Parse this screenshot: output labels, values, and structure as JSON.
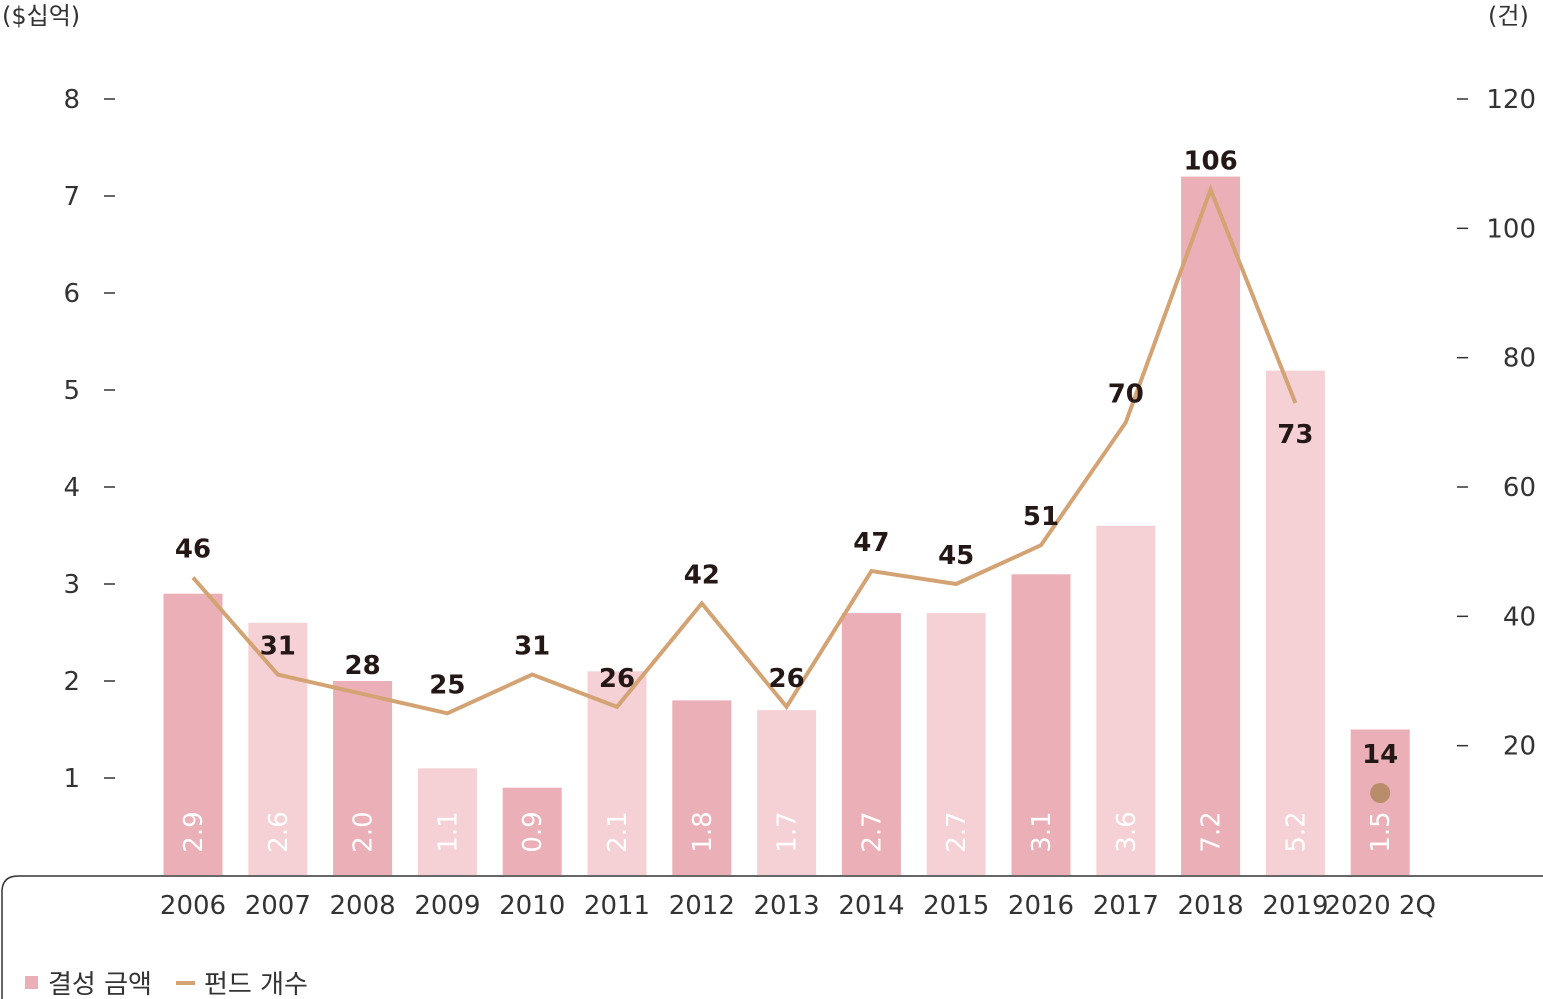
{
  "chart_data": {
    "type": "bar",
    "y_left_unit": "($십억)",
    "y_right_unit": "(건)",
    "categories": [
      "2006",
      "2007",
      "2008",
      "2009",
      "2010",
      "2011",
      "2012",
      "2013",
      "2014",
      "2015",
      "2016",
      "2017",
      "2018",
      "2019",
      "2020 2Q"
    ],
    "series": [
      {
        "name": "결성 금액",
        "type": "bar",
        "axis": "left",
        "values": [
          2.9,
          2.6,
          2.0,
          1.1,
          0.9,
          2.1,
          1.8,
          1.7,
          2.7,
          2.7,
          3.1,
          3.6,
          7.2,
          5.2,
          1.5
        ],
        "value_labels": [
          "2.9",
          "2.6",
          "2.0",
          "1.1",
          "0.9",
          "2.1",
          "1.8",
          "1.7",
          "2.7",
          "2.7",
          "3.1",
          "3.6",
          "7.2",
          "5.2",
          "1.5"
        ],
        "colors": [
          "#ebafb7",
          "#f5d1d5",
          "#ebafb7",
          "#f5d1d5",
          "#ebafb7",
          "#f5d1d5",
          "#ebafb7",
          "#f5d1d5",
          "#ebafb7",
          "#f5d1d5",
          "#ebafb7",
          "#f5d1d5",
          "#ebafb7",
          "#f5d1d5",
          "#ebafb7"
        ]
      },
      {
        "name": "펀드 개수",
        "type": "line",
        "axis": "right",
        "values": [
          46,
          31,
          28,
          25,
          31,
          26,
          42,
          26,
          47,
          45,
          51,
          70,
          106,
          73,
          14
        ],
        "line_points": 14,
        "color": "#d4a373",
        "last_point_marker_color": "#b98c6a"
      }
    ],
    "y_left": {
      "ticks": [
        1,
        2,
        3,
        4,
        5,
        6,
        7,
        8
      ],
      "range": [
        0,
        8
      ]
    },
    "y_right": {
      "ticks": [
        20,
        40,
        60,
        80,
        100,
        120
      ],
      "range": [
        0,
        120
      ]
    },
    "legend": {
      "placement": "bottom-left",
      "bar_label": "결성 금액",
      "line_label": "펀드 개수"
    }
  }
}
